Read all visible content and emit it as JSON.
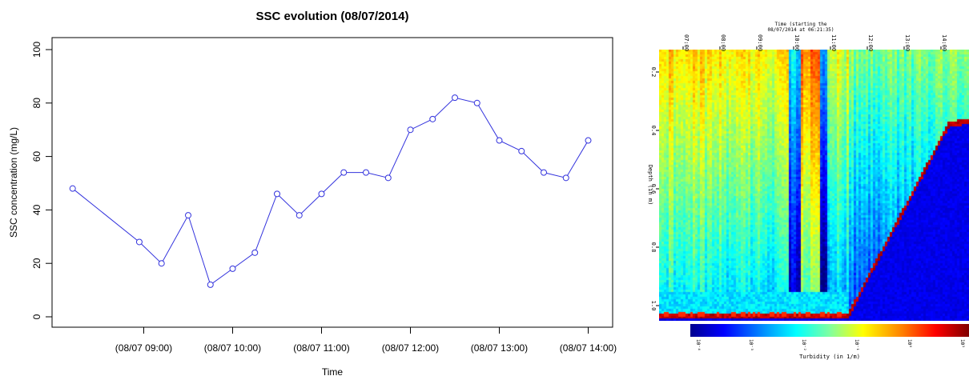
{
  "chart_data": [
    {
      "type": "line",
      "title": "SSC evolution (08/07/2014)",
      "xlabel": "Time",
      "ylabel": "SSC concentration (mg/L)",
      "ylim": [
        0,
        100
      ],
      "yticks": [
        "0",
        "20",
        "40",
        "60",
        "80",
        "100"
      ],
      "xticks": [
        "(08/07 09:00)",
        "(08/07 10:00)",
        "(08/07 11:00)",
        "(08/07 12:00)",
        "(08/07 13:00)",
        "(08/07 14:00)"
      ],
      "x_hours": [
        8.2,
        8.95,
        9.2,
        9.5,
        9.75,
        10.0,
        10.25,
        10.5,
        10.75,
        11.0,
        11.25,
        11.5,
        11.75,
        12.0,
        12.25,
        12.5,
        12.75,
        13.0,
        13.25,
        13.5,
        13.75,
        14.0
      ],
      "values": [
        48,
        28,
        20,
        38,
        12,
        18,
        24,
        46,
        38,
        46,
        54,
        54,
        52,
        70,
        74,
        82,
        80,
        66,
        62,
        54,
        52,
        66
      ],
      "line_color": "#3333dd"
    },
    {
      "type": "heatmap",
      "title_line1": "Time (starting the",
      "title_line2": "08/07/2014 at 06:21:35)",
      "xticks": [
        "07:00",
        "08:00",
        "09:00",
        "10:00",
        "11:00",
        "12:00",
        "13:00",
        "14:00"
      ],
      "ylabel": "Depth (in m)",
      "yticks": [
        "0.2",
        "0.4",
        "0.6",
        "0.8",
        "1.0"
      ],
      "colorbar_label": "Turbidity (in 1/m)",
      "colorbar_ticks": [
        "10⁻⁴",
        "10⁻³",
        "10⁻²",
        "10⁻¹",
        "10⁰",
        "10¹"
      ]
    }
  ]
}
